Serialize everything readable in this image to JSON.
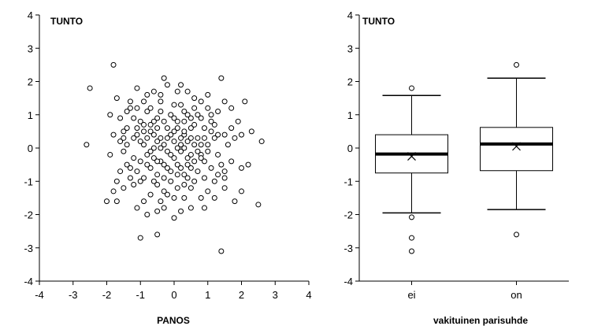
{
  "chart_data": [
    {
      "type": "scatter",
      "title": "TUNTO",
      "xlabel": "PANOS",
      "ylabel": "",
      "xlim": [
        -4,
        4
      ],
      "ylim": [
        -4,
        4
      ],
      "xticks": [
        "-4",
        "-3",
        "-2",
        "-1",
        "0",
        "1",
        "2",
        "3",
        "4"
      ],
      "yticks": [
        "-4",
        "-3",
        "-2",
        "-1",
        "0",
        "1",
        "2",
        "3",
        "4"
      ],
      "grid": false,
      "points": [
        [
          -2.5,
          1.8
        ],
        [
          -1.8,
          2.5
        ],
        [
          -2.6,
          0.1
        ],
        [
          -1.9,
          1.0
        ],
        [
          -1.7,
          1.5
        ],
        [
          -1.9,
          -0.2
        ],
        [
          -1.6,
          0.2
        ],
        [
          -1.4,
          0.1
        ],
        [
          -1.5,
          0.5
        ],
        [
          -1.3,
          1.2
        ],
        [
          -1.3,
          1.4
        ],
        [
          -1.2,
          0.3
        ],
        [
          -1.1,
          1.8
        ],
        [
          -1.0,
          0.8
        ],
        [
          -1.1,
          0.6
        ],
        [
          -0.8,
          1.1
        ],
        [
          -0.9,
          0.5
        ],
        [
          -0.7,
          0.7
        ],
        [
          -0.5,
          0.9
        ],
        [
          -0.4,
          1.6
        ],
        [
          -0.3,
          2.1
        ],
        [
          -0.4,
          1.1
        ],
        [
          -0.2,
          1.9
        ],
        [
          0.1,
          1.7
        ],
        [
          0.2,
          1.9
        ],
        [
          0.4,
          1.7
        ],
        [
          0.6,
          1.5
        ],
        [
          0.3,
          1.1
        ],
        [
          0.0,
          0.9
        ],
        [
          0.1,
          0.6
        ],
        [
          0.3,
          0.4
        ],
        [
          0.5,
          0.6
        ],
        [
          0.8,
          0.9
        ],
        [
          1.0,
          1.2
        ],
        [
          1.1,
          0.8
        ],
        [
          1.3,
          1.1
        ],
        [
          1.4,
          2.1
        ],
        [
          1.5,
          1.4
        ],
        [
          1.7,
          1.2
        ],
        [
          1.9,
          0.8
        ],
        [
          2.1,
          1.4
        ],
        [
          2.0,
          0.4
        ],
        [
          2.3,
          0.5
        ],
        [
          1.5,
          0.4
        ],
        [
          1.2,
          0.3
        ],
        [
          1.0,
          0.1
        ],
        [
          0.8,
          -0.2
        ],
        [
          0.6,
          0.1
        ],
        [
          0.4,
          -0.3
        ],
        [
          0.2,
          0.1
        ],
        [
          0.0,
          0.2
        ],
        [
          -0.2,
          -0.1
        ],
        [
          -0.4,
          0.3
        ],
        [
          -0.6,
          0.0
        ],
        [
          -0.8,
          -0.2
        ],
        [
          -1.0,
          0.2
        ],
        [
          -1.2,
          -0.3
        ],
        [
          -1.4,
          -0.5
        ],
        [
          -1.6,
          -0.7
        ],
        [
          -1.7,
          -1.0
        ],
        [
          -1.5,
          -1.2
        ],
        [
          -1.8,
          -1.3
        ],
        [
          -2.0,
          -1.6
        ],
        [
          -1.7,
          -1.6
        ],
        [
          -1.3,
          -0.9
        ],
        [
          -1.1,
          -0.7
        ],
        [
          -0.9,
          -0.9
        ],
        [
          -0.7,
          -0.6
        ],
        [
          -0.5,
          -0.8
        ],
        [
          -0.3,
          -0.5
        ],
        [
          -0.1,
          -0.7
        ],
        [
          0.1,
          -0.5
        ],
        [
          0.3,
          -0.8
        ],
        [
          0.5,
          -0.6
        ],
        [
          0.7,
          -0.7
        ],
        [
          0.9,
          -0.4
        ],
        [
          1.1,
          -0.6
        ],
        [
          1.3,
          -0.8
        ],
        [
          1.5,
          -0.7
        ],
        [
          1.7,
          -0.4
        ],
        [
          2.0,
          -0.6
        ],
        [
          2.2,
          -0.5
        ],
        [
          2.5,
          -1.7
        ],
        [
          2.6,
          0.2
        ],
        [
          1.8,
          -1.6
        ],
        [
          1.5,
          -1.2
        ],
        [
          1.2,
          -1.0
        ],
        [
          1.0,
          -1.3
        ],
        [
          0.8,
          -1.5
        ],
        [
          0.5,
          -1.2
        ],
        [
          0.3,
          -1.5
        ],
        [
          0.1,
          -1.2
        ],
        [
          -0.1,
          -1.0
        ],
        [
          -0.3,
          -1.3
        ],
        [
          -0.5,
          -1.1
        ],
        [
          -0.7,
          -1.4
        ],
        [
          -0.9,
          -1.6
        ],
        [
          -1.1,
          -1.8
        ],
        [
          -0.8,
          -2.0
        ],
        [
          -0.5,
          -1.9
        ],
        [
          -1.0,
          -2.7
        ],
        [
          -0.5,
          -2.6
        ],
        [
          0.0,
          -2.1
        ],
        [
          0.5,
          -1.8
        ],
        [
          0.9,
          -1.8
        ],
        [
          1.4,
          -3.1
        ],
        [
          2.0,
          -1.3
        ],
        [
          -0.6,
          0.4
        ],
        [
          -0.2,
          0.6
        ],
        [
          0.2,
          -0.1
        ],
        [
          0.4,
          0.2
        ],
        [
          0.6,
          -0.4
        ],
        [
          -0.4,
          -0.4
        ],
        [
          -0.6,
          -0.3
        ],
        [
          0.0,
          -0.3
        ],
        [
          0.3,
          0.8
        ],
        [
          -0.1,
          0.4
        ],
        [
          0.7,
          0.3
        ],
        [
          -0.9,
          0.1
        ],
        [
          1.1,
          0.5
        ],
        [
          -1.2,
          0.9
        ],
        [
          0.9,
          0.6
        ],
        [
          -0.3,
          0.8
        ],
        [
          0.1,
          -0.8
        ],
        [
          -0.8,
          0.3
        ],
        [
          0.5,
          0.3
        ],
        [
          -0.5,
          0.6
        ],
        [
          1.3,
          -0.2
        ],
        [
          -1.4,
          0.6
        ],
        [
          0.2,
          1.3
        ],
        [
          -0.7,
          1.2
        ],
        [
          0.6,
          -1.0
        ],
        [
          -0.2,
          -1.4
        ],
        [
          1.6,
          0.1
        ],
        [
          -1.5,
          -0.1
        ],
        [
          0.8,
          1.4
        ],
        [
          -0.9,
          1.4
        ],
        [
          0.4,
          -0.9
        ],
        [
          -0.6,
          -1.0
        ],
        [
          1.2,
          0.7
        ],
        [
          -1.0,
          -0.4
        ],
        [
          0.0,
          1.3
        ],
        [
          0.9,
          -0.9
        ],
        [
          -0.4,
          -1.6
        ],
        [
          0.3,
          -1.1
        ],
        [
          1.4,
          -0.5
        ],
        [
          -1.3,
          -0.6
        ],
        [
          -0.1,
          1.0
        ],
        [
          0.7,
          1.0
        ],
        [
          -0.7,
          -0.1
        ],
        [
          0.2,
          0.3
        ],
        [
          -0.3,
          0.1
        ],
        [
          0.5,
          0.9
        ],
        [
          1.0,
          -0.1
        ],
        [
          -1.1,
          0.4
        ],
        [
          0.1,
          0.0
        ],
        [
          -0.5,
          0.2
        ],
        [
          0.8,
          -0.3
        ],
        [
          -0.8,
          -0.5
        ],
        [
          0.4,
          -0.5
        ],
        [
          -0.2,
          0.3
        ],
        [
          1.7,
          0.6
        ],
        [
          -1.6,
          0.9
        ],
        [
          0.6,
          1.2
        ],
        [
          -0.4,
          1.4
        ],
        [
          0.0,
          -1.5
        ],
        [
          1.3,
          0.4
        ],
        [
          -1.2,
          -1.1
        ],
        [
          0.2,
          -0.6
        ],
        [
          -0.9,
          0.7
        ],
        [
          0.9,
          0.3
        ],
        [
          -0.1,
          -0.2
        ],
        [
          0.3,
          0.5
        ],
        [
          -0.6,
          0.8
        ],
        [
          0.7,
          -0.1
        ],
        [
          -0.3,
          -0.9
        ],
        [
          1.1,
          1.0
        ],
        [
          -1.4,
          1.1
        ],
        [
          0.5,
          -0.2
        ],
        [
          -0.7,
          0.5
        ],
        [
          0.1,
          0.8
        ],
        [
          -1.0,
          -1.0
        ],
        [
          1.5,
          -0.9
        ],
        [
          -0.2,
          -0.6
        ],
        [
          0.6,
          0.7
        ],
        [
          -0.5,
          -0.4
        ],
        [
          0.4,
          1.0
        ],
        [
          1.8,
          0.3
        ],
        [
          -1.8,
          0.4
        ],
        [
          0.0,
          0.5
        ],
        [
          -0.8,
          1.6
        ],
        [
          1.2,
          -1.5
        ],
        [
          -0.3,
          -1.8
        ],
        [
          0.8,
          0.1
        ],
        [
          -1.5,
          0.3
        ],
        [
          0.2,
          -1.9
        ],
        [
          -0.6,
          1.7
        ],
        [
          1.0,
          1.6
        ],
        [
          -1.1,
          1.2
        ],
        [
          0.3,
          0.0
        ],
        [
          -0.4,
          0.0
        ]
      ]
    },
    {
      "type": "box",
      "title": "TUNTO",
      "xlabel": "vakituinen parisuhde",
      "ylabel": "",
      "ylim": [
        -4,
        4
      ],
      "yticks": [
        "-4",
        "-3",
        "-2",
        "-1",
        "0",
        "1",
        "2",
        "3",
        "4"
      ],
      "categories": [
        "ei",
        "on"
      ],
      "grid": false,
      "boxes": [
        {
          "name": "ei",
          "whisker_low": -1.95,
          "q1": -0.75,
          "median": -0.18,
          "mean": -0.25,
          "q3": 0.4,
          "whisker_high": 1.58,
          "outliers": [
            1.8,
            -2.08,
            -2.7,
            -3.1
          ]
        },
        {
          "name": "on",
          "whisker_low": -1.85,
          "q1": -0.68,
          "median": 0.12,
          "mean": 0.05,
          "q3": 0.62,
          "whisker_high": 2.1,
          "outliers": [
            2.5,
            -2.6
          ]
        }
      ]
    }
  ]
}
